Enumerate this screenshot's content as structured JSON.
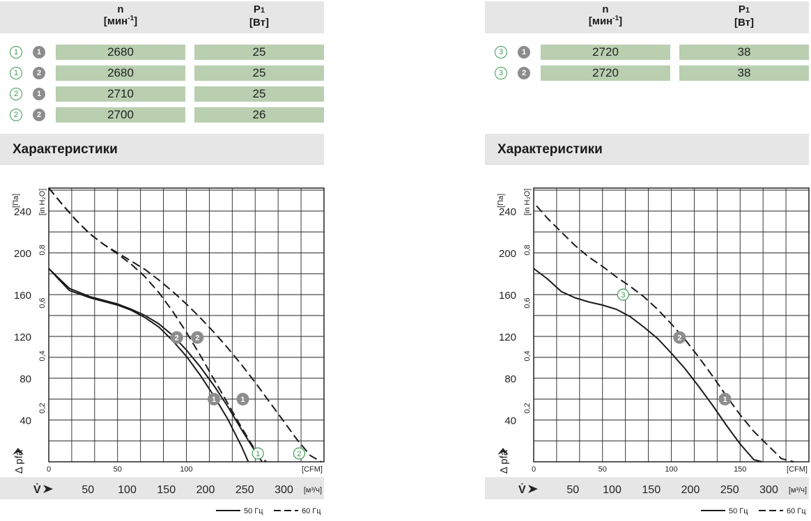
{
  "tables": [
    {
      "header": {
        "n_label": "n",
        "n_unit": "[мин",
        "n_unit_sup": "-1",
        "n_unit_end": "]",
        "p_label": "P",
        "p_sub": "1",
        "p_unit": "[Вт]"
      },
      "rows": [
        {
          "variant": "1",
          "curve": "1",
          "n": "2680",
          "p1": "25"
        },
        {
          "variant": "1",
          "curve": "2",
          "n": "2680",
          "p1": "25"
        },
        {
          "variant": "2",
          "curve": "1",
          "n": "2710",
          "p1": "25"
        },
        {
          "variant": "2",
          "curve": "2",
          "n": "2700",
          "p1": "26"
        }
      ],
      "section_title": "Характеристики"
    },
    {
      "header": {
        "n_label": "n",
        "n_unit": "[мин",
        "n_unit_sup": "-1",
        "n_unit_end": "]",
        "p_label": "P",
        "p_sub": "1",
        "p_unit": "[Вт]"
      },
      "rows": [
        {
          "variant": "3",
          "curve": "1",
          "n": "2720",
          "p1": "38"
        },
        {
          "variant": "3",
          "curve": "2",
          "n": "2720",
          "p1": "38"
        }
      ],
      "section_title": "Характеристики"
    }
  ],
  "chart_data": [
    {
      "type": "line",
      "x_unit": "CFM",
      "x_ticks": [
        0,
        50,
        100
      ],
      "x_secondary_unit": "[м³/ч]",
      "x_secondary_ticks": [
        50,
        100,
        150,
        200,
        250,
        300
      ],
      "x_secondary_label": "V̇",
      "y_unit": "[Па]",
      "y_ticks": [
        40,
        80,
        120,
        160,
        200,
        240
      ],
      "y_secondary_unit": "[in H₂O]",
      "y_secondary_ticks": [
        "0,2",
        "0,4",
        "0,6",
        "0,8"
      ],
      "ylabel": "Δ pfa",
      "xlim": [
        0,
        206
      ],
      "ylim": [
        0,
        262
      ],
      "series": [
        {
          "name": "1",
          "style": "solid",
          "x": [
            0,
            7,
            15,
            30,
            50,
            60,
            70,
            80,
            90,
            100,
            110,
            120,
            130,
            140,
            145
          ],
          "y": [
            185,
            175,
            164,
            157,
            150,
            145,
            138,
            129,
            116,
            101,
            83,
            63,
            41,
            15,
            0
          ]
        },
        {
          "name": "2",
          "style": "solid",
          "x": [
            0,
            7,
            15,
            30,
            50,
            60,
            70,
            80,
            90,
            100,
            110,
            120,
            130,
            140,
            150,
            155
          ],
          "y": [
            185,
            176,
            166,
            158,
            151,
            146,
            140,
            132,
            121,
            107,
            91,
            73,
            53,
            31,
            10,
            0
          ]
        },
        {
          "name": "1",
          "style": "dashed",
          "x": [
            0,
            10,
            20,
            30,
            40,
            50,
            60,
            70,
            80,
            90,
            100,
            110,
            120,
            130,
            140,
            150,
            158
          ],
          "y": [
            262,
            246,
            231,
            218,
            208,
            199,
            189,
            177,
            162,
            144,
            124,
            102,
            79,
            56,
            33,
            11,
            0
          ]
        },
        {
          "name": "2",
          "style": "dashed",
          "x": [
            0,
            10,
            20,
            30,
            40,
            50,
            60,
            70,
            80,
            90,
            100,
            110,
            120,
            130,
            140,
            150,
            160,
            170,
            180,
            190,
            198
          ],
          "y": [
            262,
            246,
            231,
            218,
            208,
            200,
            192,
            184,
            174,
            163,
            151,
            138,
            124,
            109,
            93,
            76,
            58,
            40,
            22,
            6,
            0
          ]
        }
      ],
      "markers": [
        {
          "label": "2",
          "style": "filled",
          "x": 93,
          "y": 119
        },
        {
          "label": "2",
          "style": "filled",
          "x": 108,
          "y": 119
        },
        {
          "label": "1",
          "style": "filled",
          "x": 120,
          "y": 60
        },
        {
          "label": "1",
          "style": "filled",
          "x": 141,
          "y": 60
        },
        {
          "label": "1",
          "style": "outline",
          "x": 152,
          "y": 8
        },
        {
          "label": "2",
          "style": "outline",
          "x": 182,
          "y": 8
        }
      ],
      "legend": {
        "solid": "50 Гц",
        "dashed": "60 Гц"
      }
    },
    {
      "type": "line",
      "x_unit": "CFM",
      "x_ticks": [
        0,
        50,
        100,
        150
      ],
      "x_secondary_unit": "[м³/ч]",
      "x_secondary_ticks": [
        50,
        100,
        150,
        200,
        250,
        300
      ],
      "x_secondary_label": "V̇",
      "y_unit": "[Па]",
      "y_ticks": [
        40,
        80,
        120,
        160,
        200,
        240
      ],
      "y_secondary_unit": "[in H₂O]",
      "y_secondary_ticks": [
        "0,2",
        "0,4",
        "0,6",
        "0,8"
      ],
      "ylabel": "Δ pfa",
      "xlim": [
        0,
        206
      ],
      "ylim": [
        0,
        262
      ],
      "series": [
        {
          "name": "3",
          "style": "solid",
          "x": [
            0,
            10,
            20,
            30,
            40,
            50,
            60,
            70,
            80,
            90,
            100,
            110,
            120,
            130,
            140,
            150,
            160,
            166
          ],
          "y": [
            185,
            175,
            163,
            157,
            153,
            150,
            146,
            139,
            129,
            118,
            104,
            89,
            72,
            54,
            35,
            17,
            2,
            0
          ]
        },
        {
          "name": "3",
          "style": "dashed",
          "x": [
            2,
            10,
            20,
            30,
            40,
            50,
            60,
            70,
            80,
            90,
            100,
            110,
            120,
            130,
            140,
            150,
            160,
            170,
            180,
            189
          ],
          "y": [
            245,
            233,
            220,
            207,
            196,
            187,
            177,
            168,
            158,
            146,
            132,
            117,
            100,
            82,
            63,
            45,
            29,
            16,
            3,
            0
          ]
        }
      ],
      "markers": [
        {
          "label": "3",
          "style": "outline",
          "x": 65,
          "y": 160
        },
        {
          "label": "2",
          "style": "filled",
          "x": 106,
          "y": 119
        },
        {
          "label": "1",
          "style": "filled",
          "x": 139,
          "y": 60
        }
      ],
      "legend": {
        "solid": "50 Гц",
        "dashed": "60 Гц"
      }
    }
  ]
}
